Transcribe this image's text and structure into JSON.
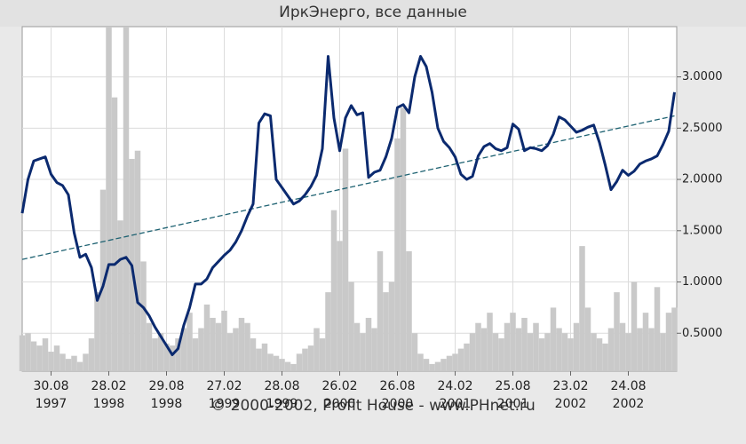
{
  "chart_data": {
    "type": "line",
    "title": "ИркЭнерго, все данные",
    "footer": "© 2000-2002, Profit House - www.PHnet.ru",
    "categories": [
      null,
      null,
      null,
      null,
      null,
      "30.08\n1997",
      null,
      null,
      null,
      null,
      null,
      null,
      null,
      null,
      null,
      "28.02\n1998",
      null,
      null,
      null,
      null,
      null,
      null,
      null,
      null,
      null,
      "29.08\n1998",
      null,
      null,
      null,
      null,
      null,
      null,
      null,
      null,
      null,
      "27.02\n1999",
      null,
      null,
      null,
      null,
      null,
      null,
      null,
      null,
      null,
      "28.08\n1999",
      null,
      null,
      null,
      null,
      null,
      null,
      null,
      null,
      null,
      "26.02\n2000",
      null,
      null,
      null,
      null,
      null,
      null,
      null,
      null,
      null,
      "26.08\n2000",
      null,
      null,
      null,
      null,
      null,
      null,
      null,
      null,
      null,
      "24.02\n2001",
      null,
      null,
      null,
      null,
      null,
      null,
      null,
      null,
      null,
      "25.08\n2001",
      null,
      null,
      null,
      null,
      null,
      null,
      null,
      null,
      null,
      "23.02\n2002",
      null,
      null,
      null,
      null,
      null,
      null,
      null,
      null,
      null,
      "24.08\n2002",
      null,
      null,
      null,
      null,
      null,
      null,
      null,
      null
    ],
    "values": [
      1.67,
      2.0,
      2.18,
      2.2,
      2.22,
      2.05,
      1.97,
      1.94,
      1.85,
      1.48,
      1.24,
      1.27,
      1.14,
      0.82,
      0.96,
      1.17,
      1.17,
      1.22,
      1.24,
      1.16,
      0.8,
      0.75,
      0.67,
      0.56,
      0.47,
      0.38,
      0.29,
      0.35,
      0.58,
      0.75,
      0.98,
      0.98,
      1.03,
      1.14,
      1.2,
      1.26,
      1.31,
      1.39,
      1.5,
      1.64,
      1.76,
      2.55,
      2.64,
      2.62,
      2.0,
      1.92,
      1.84,
      1.76,
      1.79,
      1.85,
      1.93,
      2.04,
      2.3,
      3.2,
      2.6,
      2.28,
      2.6,
      2.72,
      2.63,
      2.65,
      2.02,
      2.07,
      2.09,
      2.22,
      2.4,
      2.7,
      2.73,
      2.65,
      3.0,
      3.2,
      3.1,
      2.85,
      2.5,
      2.37,
      2.31,
      2.22,
      2.05,
      2.0,
      2.03,
      2.23,
      2.32,
      2.35,
      2.3,
      2.28,
      2.31,
      2.54,
      2.49,
      2.28,
      2.31,
      2.3,
      2.28,
      2.33,
      2.44,
      2.61,
      2.58,
      2.52,
      2.46,
      2.48,
      2.51,
      2.53,
      2.36,
      2.14,
      1.9,
      1.98,
      2.09,
      2.04,
      2.08,
      2.15,
      2.18,
      2.2,
      2.23,
      2.34,
      2.47,
      2.85
    ],
    "color": "#0b2a6f",
    "volume": {
      "color": "#c9c9c9",
      "values": [
        0.48,
        0.5,
        0.42,
        0.38,
        0.45,
        0.32,
        0.38,
        0.3,
        0.25,
        0.28,
        0.22,
        0.3,
        0.45,
        0.9,
        1.9,
        3.49,
        2.8,
        1.6,
        3.49,
        2.2,
        2.28,
        1.2,
        0.6,
        0.45,
        0.5,
        0.4,
        0.38,
        0.45,
        0.55,
        0.7,
        0.45,
        0.55,
        0.78,
        0.65,
        0.6,
        0.72,
        0.5,
        0.55,
        0.65,
        0.6,
        0.45,
        0.35,
        0.4,
        0.3,
        0.28,
        0.25,
        0.22,
        0.2,
        0.3,
        0.35,
        0.38,
        0.55,
        0.45,
        0.9,
        1.7,
        1.4,
        2.3,
        1.0,
        0.6,
        0.5,
        0.65,
        0.55,
        1.3,
        0.9,
        1.0,
        2.4,
        2.7,
        1.3,
        0.5,
        0.3,
        0.25,
        0.2,
        0.22,
        0.25,
        0.28,
        0.3,
        0.35,
        0.4,
        0.5,
        0.6,
        0.55,
        0.7,
        0.5,
        0.45,
        0.6,
        0.7,
        0.55,
        0.65,
        0.5,
        0.6,
        0.45,
        0.5,
        0.75,
        0.55,
        0.5,
        0.45,
        0.6,
        1.35,
        0.75,
        0.5,
        0.45,
        0.4,
        0.55,
        0.9,
        0.6,
        0.5,
        1.0,
        0.55,
        0.7,
        0.55,
        0.95,
        0.5,
        0.7,
        0.75
      ]
    },
    "trend": {
      "start": 1.22,
      "end": 2.62,
      "color": "#1e6272"
    },
    "ylim": [
      0.13,
      3.49
    ],
    "yticks": [
      {
        "value": 0.5,
        "label": "0.5000"
      },
      {
        "value": 1,
        "label": "1.0000"
      },
      {
        "value": 1.5,
        "label": "1.5000"
      },
      {
        "value": 2,
        "label": "2.0000"
      },
      {
        "value": 2.5,
        "label": "2.5000"
      },
      {
        "value": 3,
        "label": "3.0000"
      }
    ],
    "grid": true
  }
}
